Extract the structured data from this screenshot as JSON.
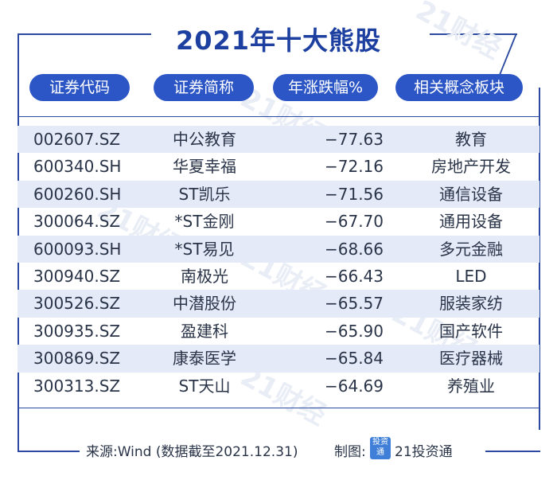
{
  "title": "2021年十大熊股",
  "headers": [
    "证券代码",
    "证券简称",
    "年涨跌幅%",
    "相关概念板块"
  ],
  "rows": [
    {
      "code": "002607.SZ",
      "name": "中公教育",
      "pct": "−77.63",
      "sector": "教育"
    },
    {
      "code": "600340.SH",
      "name": "华夏幸福",
      "pct": "−72.16",
      "sector": "房地产开发"
    },
    {
      "code": "600260.SH",
      "name": "ST凯乐",
      "pct": "−71.56",
      "sector": "通信设备"
    },
    {
      "code": "300064.SZ",
      "name": "*ST金刚",
      "pct": "−67.70",
      "sector": "通用设备"
    },
    {
      "code": "600093.SH",
      "name": "*ST易见",
      "pct": "−68.66",
      "sector": "多元金融"
    },
    {
      "code": "300940.SZ",
      "name": "南极光",
      "pct": "−66.43",
      "sector": "LED"
    },
    {
      "code": "300526.SZ",
      "name": "中潜股份",
      "pct": "−65.57",
      "sector": "服装家纺"
    },
    {
      "code": "300935.SZ",
      "name": "盈建科",
      "pct": "−65.90",
      "sector": "国产软件"
    },
    {
      "code": "300869.SZ",
      "name": "康泰医学",
      "pct": "−65.84",
      "sector": "医疗器械"
    },
    {
      "code": "300313.SZ",
      "name": "ST天山",
      "pct": "−64.69",
      "sector": "养殖业"
    }
  ],
  "footer": {
    "source": "来源:Wind (数据截至2021.12.31)",
    "made_by_label": "制图:",
    "logo_text": "投资通",
    "brand": "21投资通"
  },
  "watermark": "21财经",
  "colors": {
    "accent": "#2c56c5",
    "stripe": "#e4eaf8",
    "title": "#1c3fa0"
  }
}
